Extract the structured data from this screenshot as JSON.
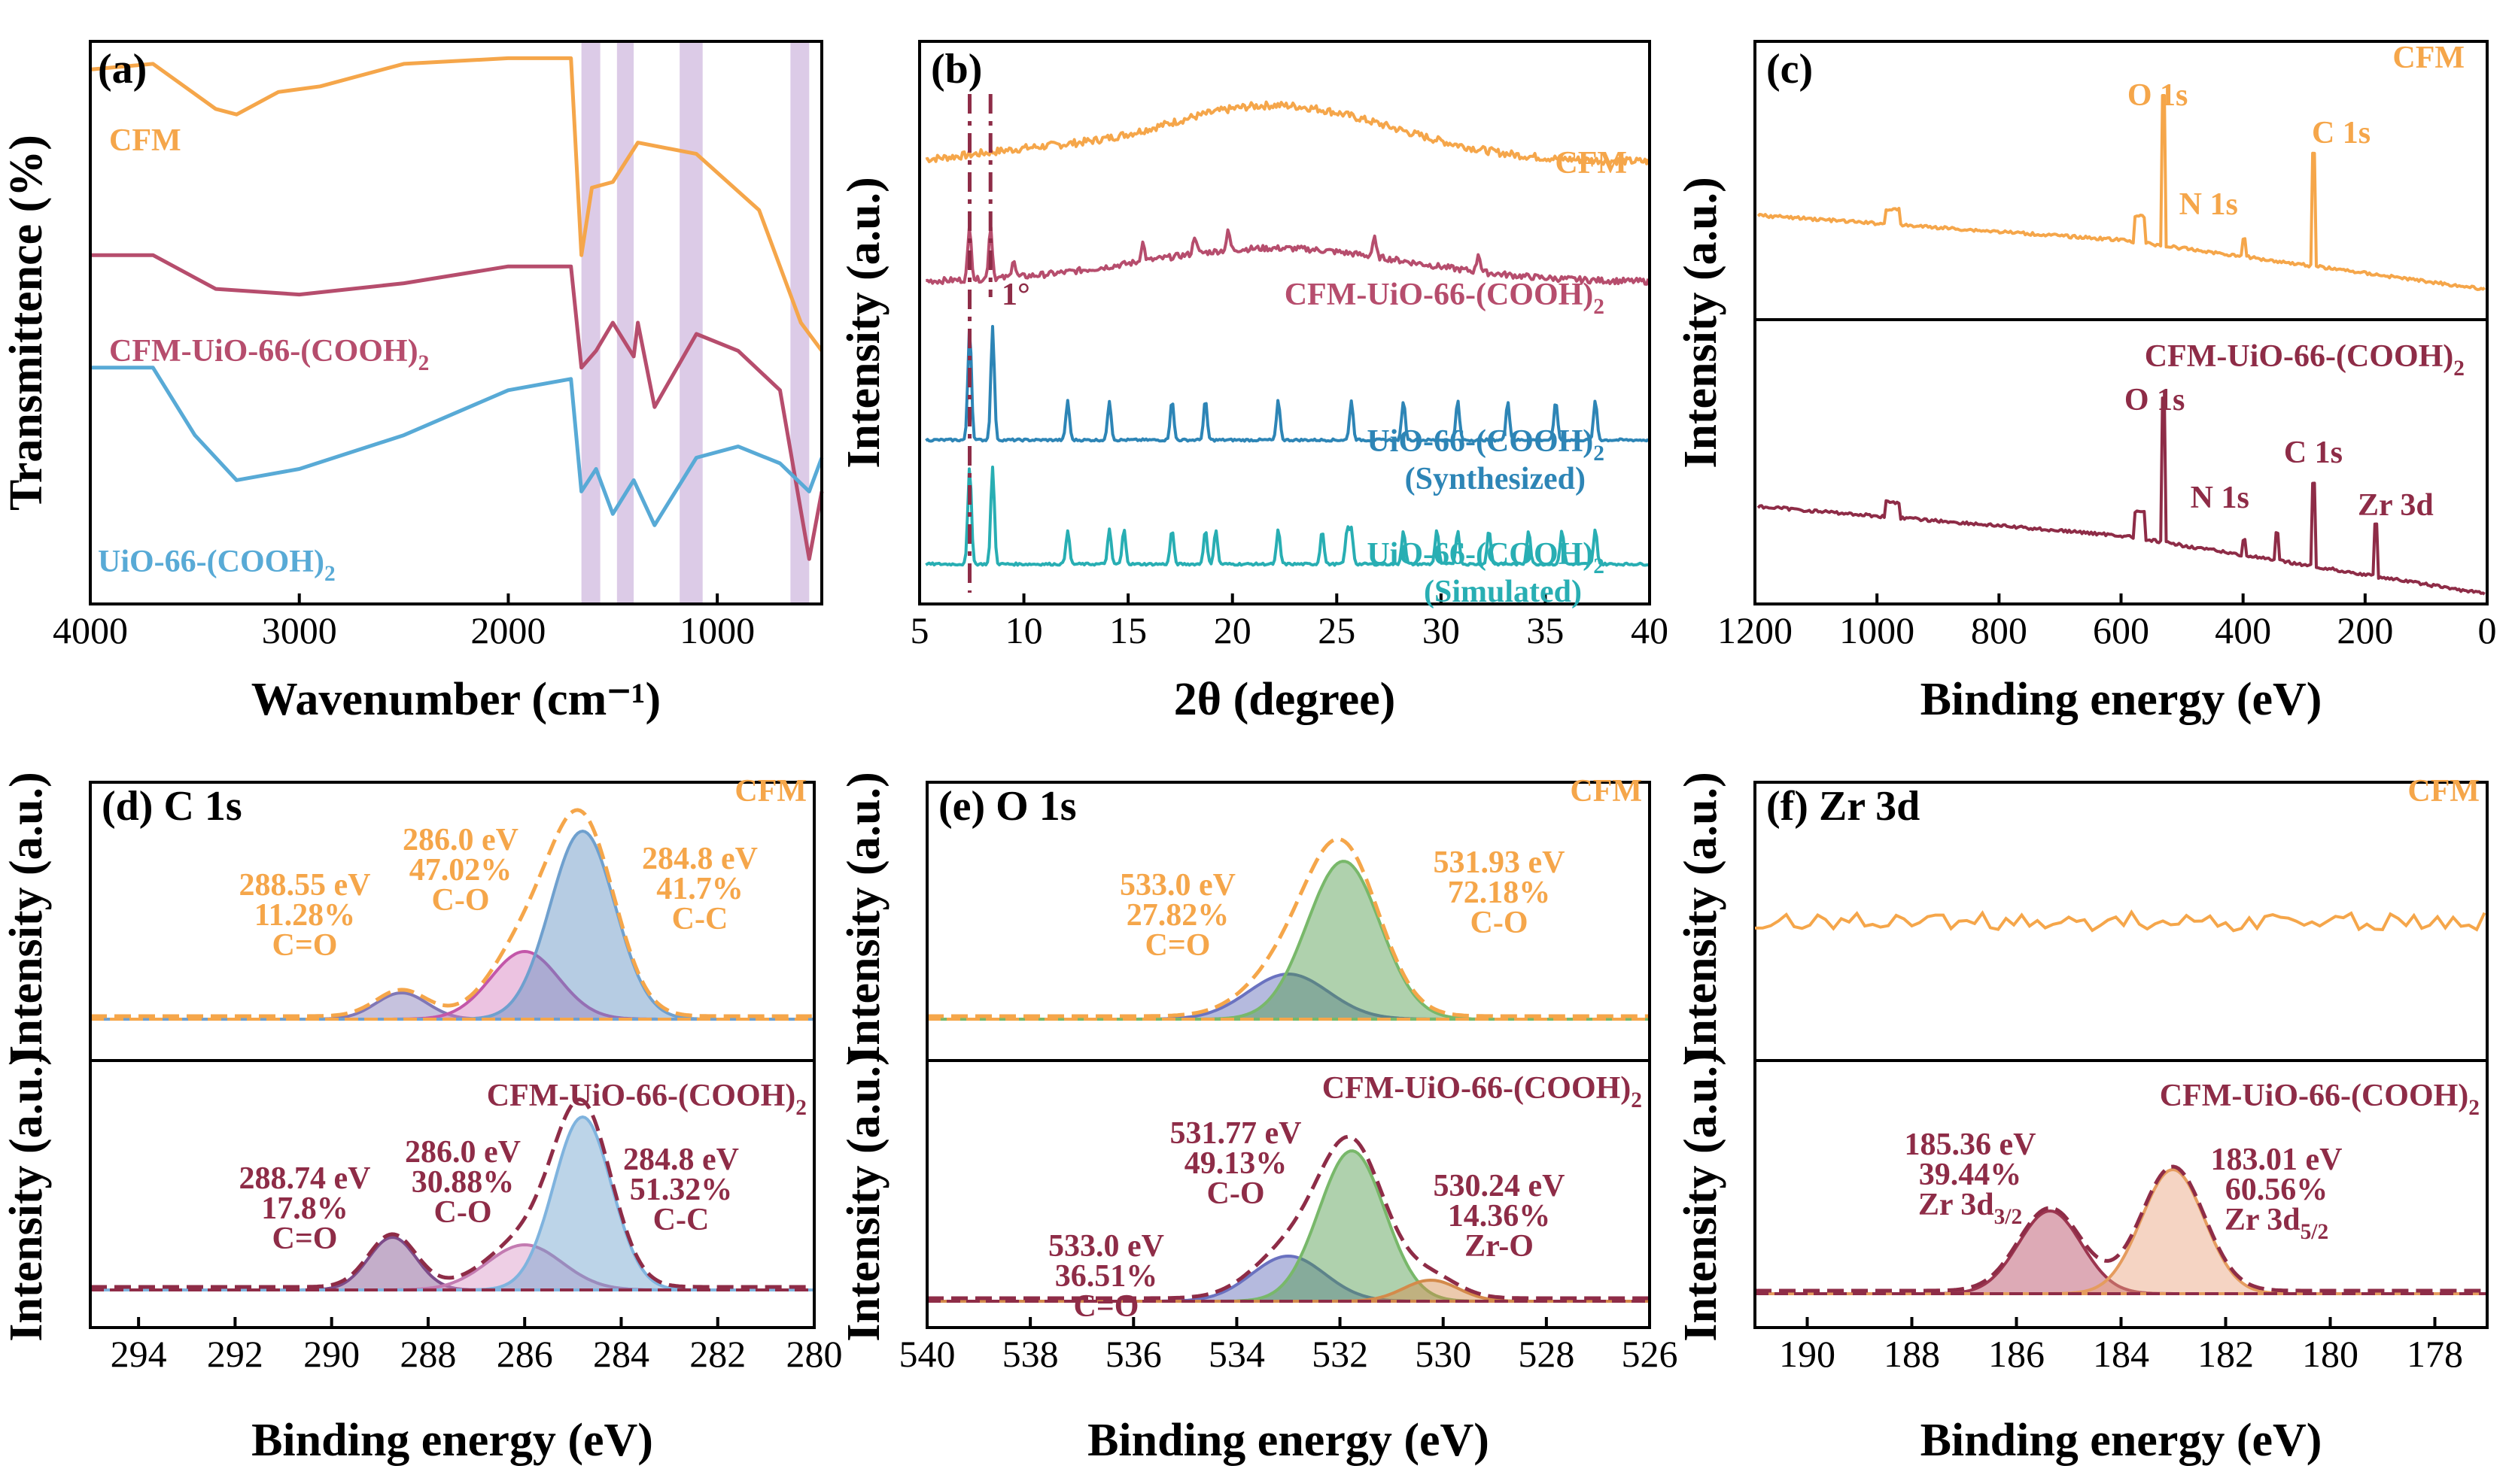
{
  "colors": {
    "cfm": "#f5a64a",
    "cfm_uio": "#b64d6d",
    "uio": "#58aad6",
    "uio_syn": "#2d85b6",
    "uio_sim": "#28aeb3",
    "xps_dark": "#8e2c47",
    "band": "#dccbe7"
  },
  "chart_data": [
    {
      "id": "a",
      "type": "line",
      "panel_label": "(a)",
      "xlabel": "Wavenumber",
      "xlabel_unit": "(cm⁻¹)",
      "ylabel": "Transmittence (%)",
      "xlim": [
        4000,
        500
      ],
      "xticks": [
        "4000",
        "3000",
        "2000",
        "1000"
      ],
      "highlight_bands_cm1": [
        [
          1650,
          1560
        ],
        [
          1480,
          1400
        ],
        [
          1180,
          1070
        ],
        [
          650,
          560
        ]
      ],
      "series": [
        {
          "name": "CFM",
          "x": [
            4000,
            3700,
            3400,
            3300,
            3100,
            2900,
            2500,
            2000,
            1700,
            1650,
            1600,
            1500,
            1380,
            1100,
            800,
            600,
            500
          ],
          "y": [
            0.95,
            0.96,
            0.88,
            0.87,
            0.91,
            0.92,
            0.96,
            0.97,
            0.97,
            0.62,
            0.74,
            0.75,
            0.82,
            0.8,
            0.7,
            0.5,
            0.45
          ]
        },
        {
          "name": "CFM-UiO-66-(COOH)₂",
          "x": [
            4000,
            3700,
            3400,
            3000,
            2500,
            2000,
            1700,
            1650,
            1580,
            1500,
            1400,
            1380,
            1300,
            1100,
            900,
            700,
            560,
            500
          ],
          "y": [
            0.62,
            0.62,
            0.56,
            0.55,
            0.57,
            0.6,
            0.6,
            0.42,
            0.45,
            0.5,
            0.44,
            0.5,
            0.35,
            0.48,
            0.45,
            0.38,
            0.08,
            0.2
          ]
        },
        {
          "name": "UiO-66-(COOH)₂",
          "x": [
            4000,
            3700,
            3500,
            3300,
            3000,
            2500,
            2000,
            1700,
            1650,
            1580,
            1500,
            1400,
            1300,
            1100,
            900,
            700,
            560,
            500
          ],
          "y": [
            0.42,
            0.42,
            0.3,
            0.22,
            0.24,
            0.3,
            0.38,
            0.4,
            0.2,
            0.24,
            0.16,
            0.22,
            0.14,
            0.26,
            0.28,
            0.25,
            0.2,
            0.26
          ]
        }
      ],
      "labels": [
        "CFM",
        "CFM-UiO-66-(COOH)₂",
        "UiO-66-(COOH)₂"
      ]
    },
    {
      "id": "b",
      "type": "line",
      "panel_label": "(b)",
      "xlabel": "2θ (degree)",
      "ylabel": "Intensity (a.u.)",
      "xlim": [
        5,
        40
      ],
      "xticks": [
        "5",
        "10",
        "15",
        "20",
        "25",
        "30",
        "35",
        "40"
      ],
      "reference_lines_deg": [
        7.4,
        8.4
      ],
      "shift_annotation": "1°",
      "series": [
        {
          "name": "CFM",
          "peaks_deg": []
        },
        {
          "name": "CFM-UiO-66-(COOH)₂",
          "peaks_deg": [
            7.4,
            8.4,
            9.5,
            15.7,
            18.2,
            19.8,
            26.8,
            31.8
          ]
        },
        {
          "name": "UiO-66-(COOH)₂ (Synthesized)",
          "peaks_deg": [
            7.4,
            8.5,
            12.1,
            14.1,
            17.1,
            18.7,
            22.2,
            25.7,
            28.2,
            30.8,
            33.2,
            35.5,
            37.4
          ]
        },
        {
          "name": "UiO-66-(COOH)₂ (Simulated)",
          "peaks_deg": [
            7.4,
            8.5,
            12.1,
            14.1,
            14.8,
            17.1,
            18.7,
            19.2,
            22.2,
            24.3,
            25.5,
            25.7,
            28.2,
            29.8,
            30.8,
            32.3,
            34.2,
            35.8,
            37.4
          ]
        }
      ],
      "labels": [
        "CFM",
        "CFM-UiO-66-(COOH)₂",
        "UiO-66-(COOH)₂",
        "(Synthesized)",
        "UiO-66-(COOH)₂",
        "(Simulated)"
      ]
    },
    {
      "id": "c",
      "type": "line",
      "panel_label": "(c)",
      "xlabel": "Binding energy (eV)",
      "ylabel": "Intensity (a.u.)",
      "xlim": [
        1200,
        0
      ],
      "xticks": [
        "1200",
        "1000",
        "800",
        "600",
        "400",
        "200",
        "0"
      ],
      "series": [
        {
          "name": "CFM",
          "peaks_eV": {
            "O 1s": 531,
            "N 1s": 399,
            "C 1s": 285
          }
        },
        {
          "name": "CFM-UiO-66-(COOH)₂",
          "peaks_eV": {
            "O 1s": 531,
            "N 1s": 399,
            "C 1s": 285,
            "Zr 3d": 183
          }
        }
      ],
      "labels": [
        "CFM",
        "O 1s",
        "N 1s",
        "C 1s",
        "CFM-UiO-66-(COOH)₂",
        "O 1s",
        "N 1s",
        "C 1s",
        "Zr 3d"
      ]
    },
    {
      "id": "d",
      "type": "area",
      "panel_label": "(d) C 1s",
      "xlabel": "Binding energy (eV)",
      "ylabel": "Intensity (a.u.)",
      "xlim": [
        295,
        280
      ],
      "xticks": [
        "294",
        "292",
        "290",
        "288",
        "286",
        "284",
        "282",
        "280"
      ],
      "series": [
        {
          "name": "CFM",
          "peaks": [
            {
              "center_eV": 288.55,
              "fraction_pct": 11.28,
              "bond": "C=O"
            },
            {
              "center_eV": 286.0,
              "fraction_pct": 47.02,
              "bond": "C-O"
            },
            {
              "center_eV": 284.8,
              "fraction_pct": 41.7,
              "bond": "C-C"
            }
          ]
        },
        {
          "name": "CFM-UiO-66-(COOH)₂",
          "peaks": [
            {
              "center_eV": 288.74,
              "fraction_pct": 17.8,
              "bond": "C=O"
            },
            {
              "center_eV": 286.0,
              "fraction_pct": 30.88,
              "bond": "C-O"
            },
            {
              "center_eV": 284.8,
              "fraction_pct": 51.32,
              "bond": "C-C"
            }
          ]
        }
      ],
      "labels": [
        "CFM",
        "288.55 eV",
        "11.28%",
        "C=O",
        "286.0 eV",
        "47.02%",
        "C-O",
        "284.8 eV",
        "41.7%",
        "C-C",
        "CFM-UiO-66-(COOH)₂",
        "288.74 eV",
        "17.8%",
        "C=O",
        "286.0 eV",
        "30.88%",
        "C-O",
        "284.8 eV",
        "51.32%",
        "C-C"
      ]
    },
    {
      "id": "e",
      "type": "area",
      "panel_label": "(e) O 1s",
      "xlabel": "Binding energy (eV)",
      "ylabel": "Intensity (a.u.)",
      "xlim": [
        540,
        526
      ],
      "xticks": [
        "540",
        "538",
        "536",
        "534",
        "532",
        "530",
        "528",
        "526"
      ],
      "series": [
        {
          "name": "CFM",
          "peaks": [
            {
              "center_eV": 533.0,
              "fraction_pct": 27.82,
              "bond": "C=O"
            },
            {
              "center_eV": 531.93,
              "fraction_pct": 72.18,
              "bond": "C-O"
            }
          ]
        },
        {
          "name": "CFM-UiO-66-(COOH)₂",
          "peaks": [
            {
              "center_eV": 533.0,
              "fraction_pct": 36.51,
              "bond": "C=O"
            },
            {
              "center_eV": 531.77,
              "fraction_pct": 49.13,
              "bond": "C-O"
            },
            {
              "center_eV": 530.24,
              "fraction_pct": 14.36,
              "bond": "Zr-O"
            }
          ]
        }
      ],
      "labels": [
        "CFM",
        "533.0 eV",
        "27.82%",
        "C=O",
        "531.93 eV",
        "72.18%",
        "C-O",
        "CFM-UiO-66-(COOH)₂",
        "531.77 eV",
        "49.13%",
        "C-O",
        "530.24 eV",
        "14.36%",
        "Zr-O",
        "533.0 eV",
        "36.51%",
        "C=O"
      ]
    },
    {
      "id": "f",
      "type": "area",
      "panel_label": "(f) Zr 3d",
      "xlabel": "Binding energy (eV)",
      "ylabel": "Intensity (a.u.)",
      "xlim": [
        191,
        177
      ],
      "xticks": [
        "190",
        "188",
        "186",
        "184",
        "182",
        "180",
        "178"
      ],
      "series": [
        {
          "name": "CFM",
          "peaks": []
        },
        {
          "name": "CFM-UiO-66-(COOH)₂",
          "peaks": [
            {
              "center_eV": 185.36,
              "fraction_pct": 39.44,
              "bond": "Zr 3d3/2"
            },
            {
              "center_eV": 183.01,
              "fraction_pct": 60.56,
              "bond": "Zr 3d5/2"
            }
          ]
        }
      ],
      "labels": [
        "CFM",
        "CFM-UiO-66-(COOH)₂",
        "185.36 eV",
        "39.44%",
        "183.01 eV",
        "60.56%"
      ],
      "sublabels": {
        "zr_32": [
          "Zr 3d",
          "3/2"
        ],
        "zr_52": [
          "Zr 3d",
          "5/2"
        ]
      }
    }
  ]
}
